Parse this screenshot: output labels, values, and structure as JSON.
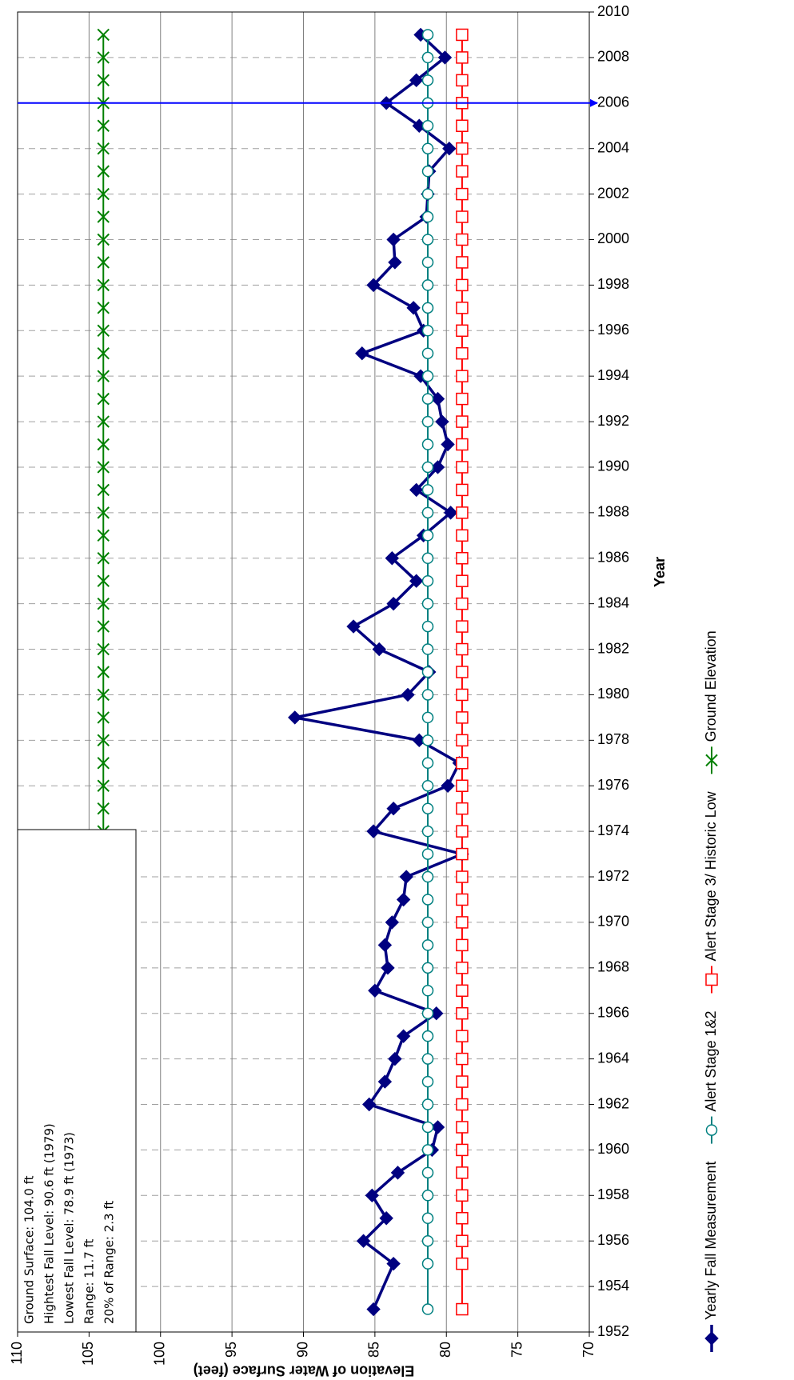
{
  "chart_data": {
    "type": "line",
    "x_label": "Year",
    "y_label": "Elevation of Water Surface (feet)",
    "xlim": [
      1952,
      2010
    ],
    "xticks": [
      1952,
      1954,
      1956,
      1958,
      1960,
      1962,
      1964,
      1966,
      1968,
      1970,
      1972,
      1974,
      1976,
      1978,
      1980,
      1982,
      1984,
      1986,
      1988,
      1990,
      1992,
      1994,
      1996,
      1998,
      2000,
      2002,
      2004,
      2006,
      2008,
      2010
    ],
    "ylim": [
      70,
      110
    ],
    "yticks": [
      70,
      75,
      80,
      85,
      90,
      95,
      100,
      105,
      110
    ],
    "grid": true,
    "reference_year": 2006,
    "reference_color": "#0000ff",
    "annotation": [
      "Ground Surface: 104.0 ft",
      "Hightest Fall Level: 90.6 ft (1979)",
      "Lowest Fall Level: 78.9 ft (1973)",
      "Range: 11.7 ft",
      "20% of Range: 2.3 ft"
    ],
    "series": [
      {
        "name": "Yearly Fall Measurement",
        "color": "#000080",
        "marker": "diamond",
        "x": [
          1953,
          1955,
          1956,
          1957,
          1958,
          1959,
          1960,
          1961,
          1962,
          1963,
          1964,
          1965,
          1966,
          1967,
          1968,
          1969,
          1970,
          1971,
          1972,
          1973,
          1974,
          1975,
          1976,
          1977,
          1978,
          1979,
          1980,
          1981,
          1982,
          1983,
          1984,
          1985,
          1986,
          1987,
          1988,
          1989,
          1990,
          1991,
          1992,
          1993,
          1994,
          1995,
          1996,
          1997,
          1998,
          1999,
          2000,
          2001,
          2002,
          2003,
          2004,
          2005,
          2006,
          2007,
          2008,
          2009
        ],
        "values": [
          85.1,
          83.7,
          85.8,
          84.2,
          85.2,
          83.4,
          81.0,
          80.6,
          85.4,
          84.3,
          83.6,
          83.0,
          80.7,
          85.0,
          84.1,
          84.3,
          83.8,
          83.0,
          82.8,
          78.9,
          85.1,
          83.7,
          79.9,
          79.1,
          81.9,
          90.6,
          82.7,
          81.2,
          84.7,
          86.5,
          83.7,
          82.1,
          83.8,
          81.6,
          79.7,
          82.1,
          80.6,
          79.9,
          80.3,
          80.6,
          81.8,
          85.9,
          81.6,
          82.3,
          85.1,
          83.6,
          83.7,
          81.4,
          81.3,
          81.2,
          79.8,
          81.9,
          84.2,
          82.1,
          80.1,
          81.8
        ]
      },
      {
        "name": "Alert Stage 1&2",
        "color": "#008080",
        "marker": "circle",
        "x": [
          1953,
          1955,
          1956,
          1957,
          1958,
          1959,
          1960,
          1961,
          1962,
          1963,
          1964,
          1965,
          1966,
          1967,
          1968,
          1969,
          1970,
          1971,
          1972,
          1973,
          1974,
          1975,
          1976,
          1977,
          1978,
          1979,
          1980,
          1981,
          1982,
          1983,
          1984,
          1985,
          1986,
          1987,
          1988,
          1989,
          1990,
          1991,
          1992,
          1993,
          1994,
          1995,
          1996,
          1997,
          1998,
          1999,
          2000,
          2001,
          2002,
          2003,
          2004,
          2005,
          2006,
          2007,
          2008,
          2009
        ],
        "values": [
          81.3,
          81.3,
          81.3,
          81.3,
          81.3,
          81.3,
          81.3,
          81.3,
          81.3,
          81.3,
          81.3,
          81.3,
          81.3,
          81.3,
          81.3,
          81.3,
          81.3,
          81.3,
          81.3,
          81.3,
          81.3,
          81.3,
          81.3,
          81.3,
          81.3,
          81.3,
          81.3,
          81.3,
          81.3,
          81.3,
          81.3,
          81.3,
          81.3,
          81.3,
          81.3,
          81.3,
          81.3,
          81.3,
          81.3,
          81.3,
          81.3,
          81.3,
          81.3,
          81.3,
          81.3,
          81.3,
          81.3,
          81.3,
          81.3,
          81.3,
          81.3,
          81.3,
          81.3,
          81.3,
          81.3,
          81.3
        ]
      },
      {
        "name": "Alert Stage 3/ Historic Low",
        "color": "#ff0000",
        "marker": "square",
        "x": [
          1953,
          1955,
          1956,
          1957,
          1958,
          1959,
          1960,
          1961,
          1962,
          1963,
          1964,
          1965,
          1966,
          1967,
          1968,
          1969,
          1970,
          1971,
          1972,
          1973,
          1974,
          1975,
          1976,
          1977,
          1978,
          1979,
          1980,
          1981,
          1982,
          1983,
          1984,
          1985,
          1986,
          1987,
          1988,
          1989,
          1990,
          1991,
          1992,
          1993,
          1994,
          1995,
          1996,
          1997,
          1998,
          1999,
          2000,
          2001,
          2002,
          2003,
          2004,
          2005,
          2006,
          2007,
          2008,
          2009
        ],
        "values": [
          78.9,
          78.9,
          78.9,
          78.9,
          78.9,
          78.9,
          78.9,
          78.9,
          78.9,
          78.9,
          78.9,
          78.9,
          78.9,
          78.9,
          78.9,
          78.9,
          78.9,
          78.9,
          78.9,
          78.9,
          78.9,
          78.9,
          78.9,
          78.9,
          78.9,
          78.9,
          78.9,
          78.9,
          78.9,
          78.9,
          78.9,
          78.9,
          78.9,
          78.9,
          78.9,
          78.9,
          78.9,
          78.9,
          78.9,
          78.9,
          78.9,
          78.9,
          78.9,
          78.9,
          78.9,
          78.9,
          78.9,
          78.9,
          78.9,
          78.9,
          78.9,
          78.9,
          78.9,
          78.9,
          78.9,
          78.9
        ]
      },
      {
        "name": "Ground Elevation",
        "color": "#008000",
        "marker": "x",
        "x": [
          1969,
          1970,
          1971,
          1972,
          1973,
          1974,
          1975,
          1976,
          1977,
          1978,
          1979,
          1980,
          1981,
          1982,
          1983,
          1984,
          1985,
          1986,
          1987,
          1988,
          1989,
          1990,
          1991,
          1992,
          1993,
          1994,
          1995,
          1996,
          1997,
          1998,
          1999,
          2000,
          2001,
          2002,
          2003,
          2004,
          2005,
          2006,
          2007,
          2008,
          2009
        ],
        "values": [
          104.0,
          104.0,
          104.0,
          104.0,
          104.0,
          104.0,
          104.0,
          104.0,
          104.0,
          104.0,
          104.0,
          104.0,
          104.0,
          104.0,
          104.0,
          104.0,
          104.0,
          104.0,
          104.0,
          104.0,
          104.0,
          104.0,
          104.0,
          104.0,
          104.0,
          104.0,
          104.0,
          104.0,
          104.0,
          104.0,
          104.0,
          104.0,
          104.0,
          104.0,
          104.0,
          104.0,
          104.0,
          104.0,
          104.0,
          104.0,
          104.0
        ]
      }
    ]
  }
}
